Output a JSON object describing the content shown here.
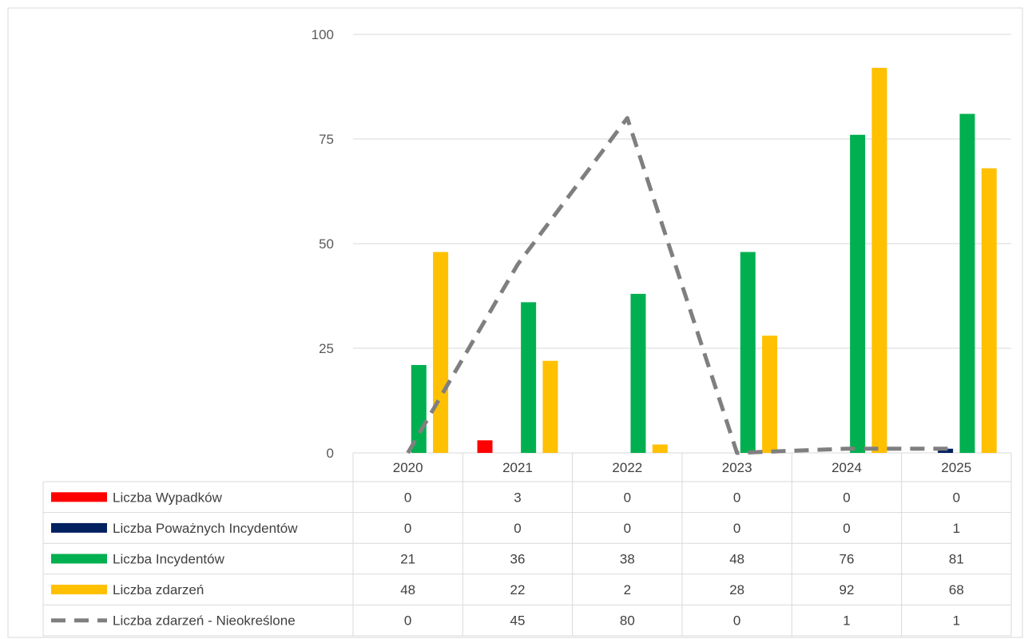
{
  "chart_data": {
    "type": "bar",
    "categories": [
      "2020",
      "2021",
      "2022",
      "2023",
      "2024",
      "2025"
    ],
    "y_ticks": [
      "0",
      "25",
      "50",
      "75",
      "100"
    ],
    "ylim": [
      0,
      100
    ],
    "grid": true,
    "legend_placement": "data-table",
    "series": [
      {
        "name": "Liczba Wypadków",
        "kind": "bar",
        "color": "#ff0000",
        "values": [
          0,
          3,
          0,
          0,
          0,
          0
        ]
      },
      {
        "name": "Liczba Poważnych Incydentów",
        "kind": "bar",
        "color": "#002060",
        "values": [
          0,
          0,
          0,
          0,
          0,
          1
        ]
      },
      {
        "name": "Liczba Incydentów",
        "kind": "bar",
        "color": "#00b050",
        "values": [
          21,
          36,
          38,
          48,
          76,
          81
        ]
      },
      {
        "name": "Liczba zdarzeń",
        "kind": "bar",
        "color": "#ffc000",
        "values": [
          48,
          22,
          2,
          28,
          92,
          68
        ]
      },
      {
        "name": "Liczba zdarzeń - Nieokreślone",
        "kind": "line",
        "style": "dashed",
        "color": "#7f7f7f",
        "values": [
          0,
          45,
          80,
          0,
          1,
          1
        ]
      }
    ]
  }
}
